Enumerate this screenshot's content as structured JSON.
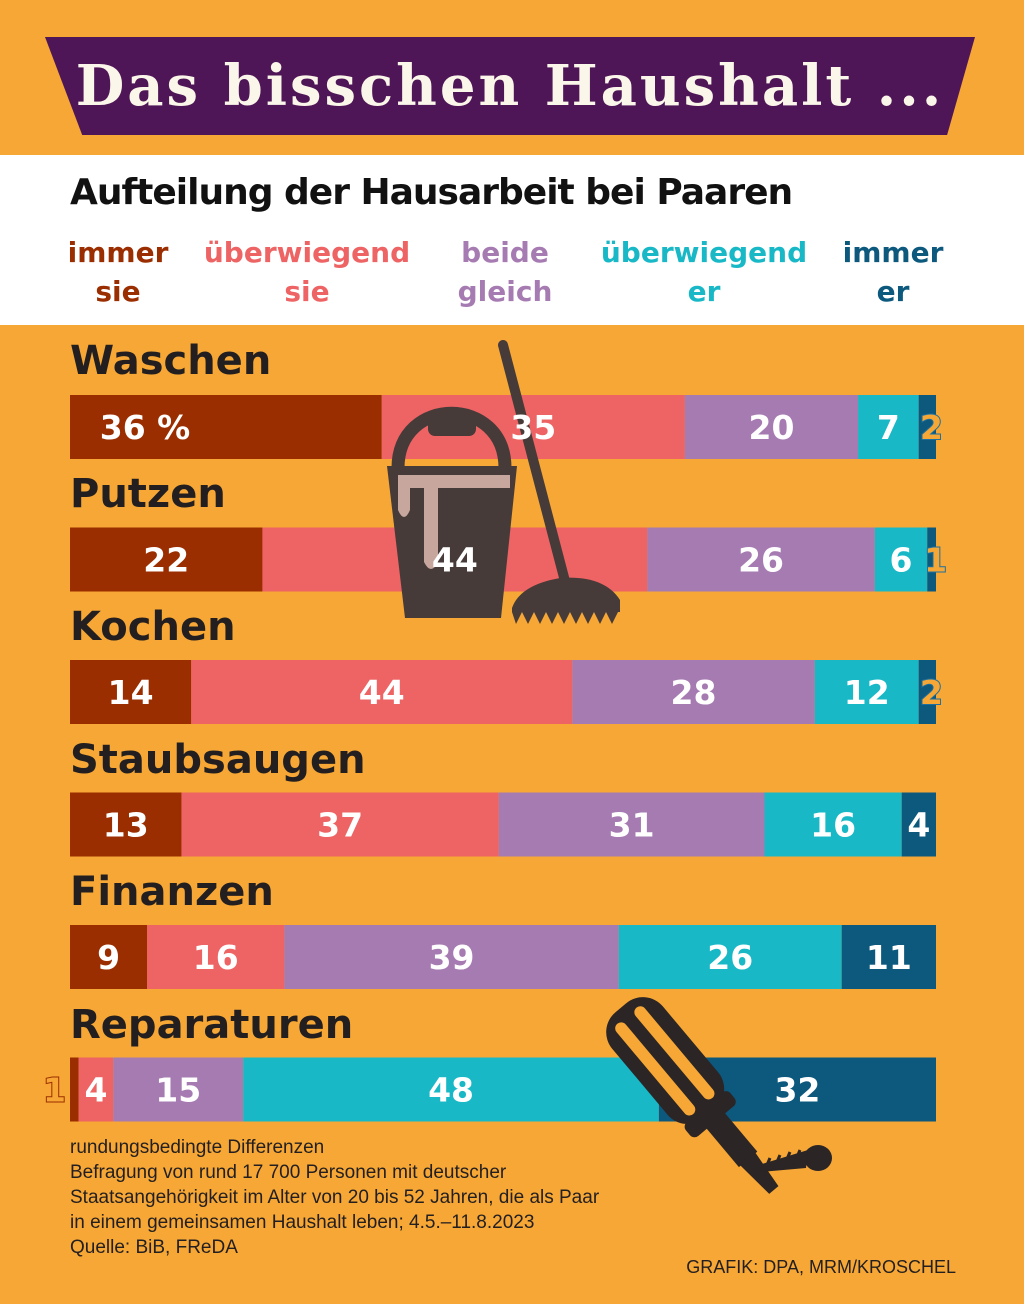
{
  "header": {
    "title": "Das bisschen Haushalt ...",
    "subtitle": "Aufteilung der Hausarbeit bei Paaren"
  },
  "legend": [
    {
      "line1": "immer",
      "line2": "sie",
      "color": "#9b2e00"
    },
    {
      "line1": "überwiegend",
      "line2": "sie",
      "color": "#ee6363"
    },
    {
      "line1": "beide",
      "line2": "gleich",
      "color": "#a67bb2"
    },
    {
      "line1": "überwiegend",
      "line2": "er",
      "color": "#19b8c6"
    },
    {
      "line1": "immer",
      "line2": "er",
      "color": "#0d587d"
    }
  ],
  "chart_data": {
    "type": "bar",
    "orientation": "horizontal",
    "stacked": true,
    "unit": "%",
    "title": "Aufteilung der Hausarbeit bei Paaren",
    "categories": [
      "Waschen",
      "Putzen",
      "Kochen",
      "Staubsaugen",
      "Finanzen",
      "Reparaturen"
    ],
    "series": [
      {
        "name": "immer sie",
        "color": "#9b2e00",
        "values": [
          36,
          22,
          14,
          13,
          9,
          1
        ]
      },
      {
        "name": "überwiegend sie",
        "color": "#ee6363",
        "values": [
          35,
          44,
          44,
          37,
          16,
          4
        ]
      },
      {
        "name": "beide gleich",
        "color": "#a67bb2",
        "values": [
          20,
          26,
          28,
          31,
          39,
          15
        ]
      },
      {
        "name": "überwiegend er",
        "color": "#19b8c6",
        "values": [
          7,
          6,
          12,
          16,
          26,
          48
        ]
      },
      {
        "name": "immer er",
        "color": "#0d587d",
        "values": [
          2,
          1,
          2,
          4,
          11,
          32
        ]
      }
    ],
    "first_value_labels": [
      "36 %",
      "22",
      "14",
      "13",
      "9",
      "1"
    ]
  },
  "footnotes": [
    "rundungsbedingte Differenzen",
    "Befragung von rund 17 700 Personen mit deutscher",
    "Staatsangehörigkeit im Alter von 20 bis 52 Jahren, die als Paar",
    "in einem gemeinsamen Haushalt leben; 4.5.–11.8.2023",
    "Quelle: BiB, FReDA"
  ],
  "credit": "GRAFIK: DPA, MRM/KROSCHEL",
  "icons": [
    "bucket-icon",
    "mop-icon",
    "screwdriver-icon",
    "screw-icon"
  ]
}
